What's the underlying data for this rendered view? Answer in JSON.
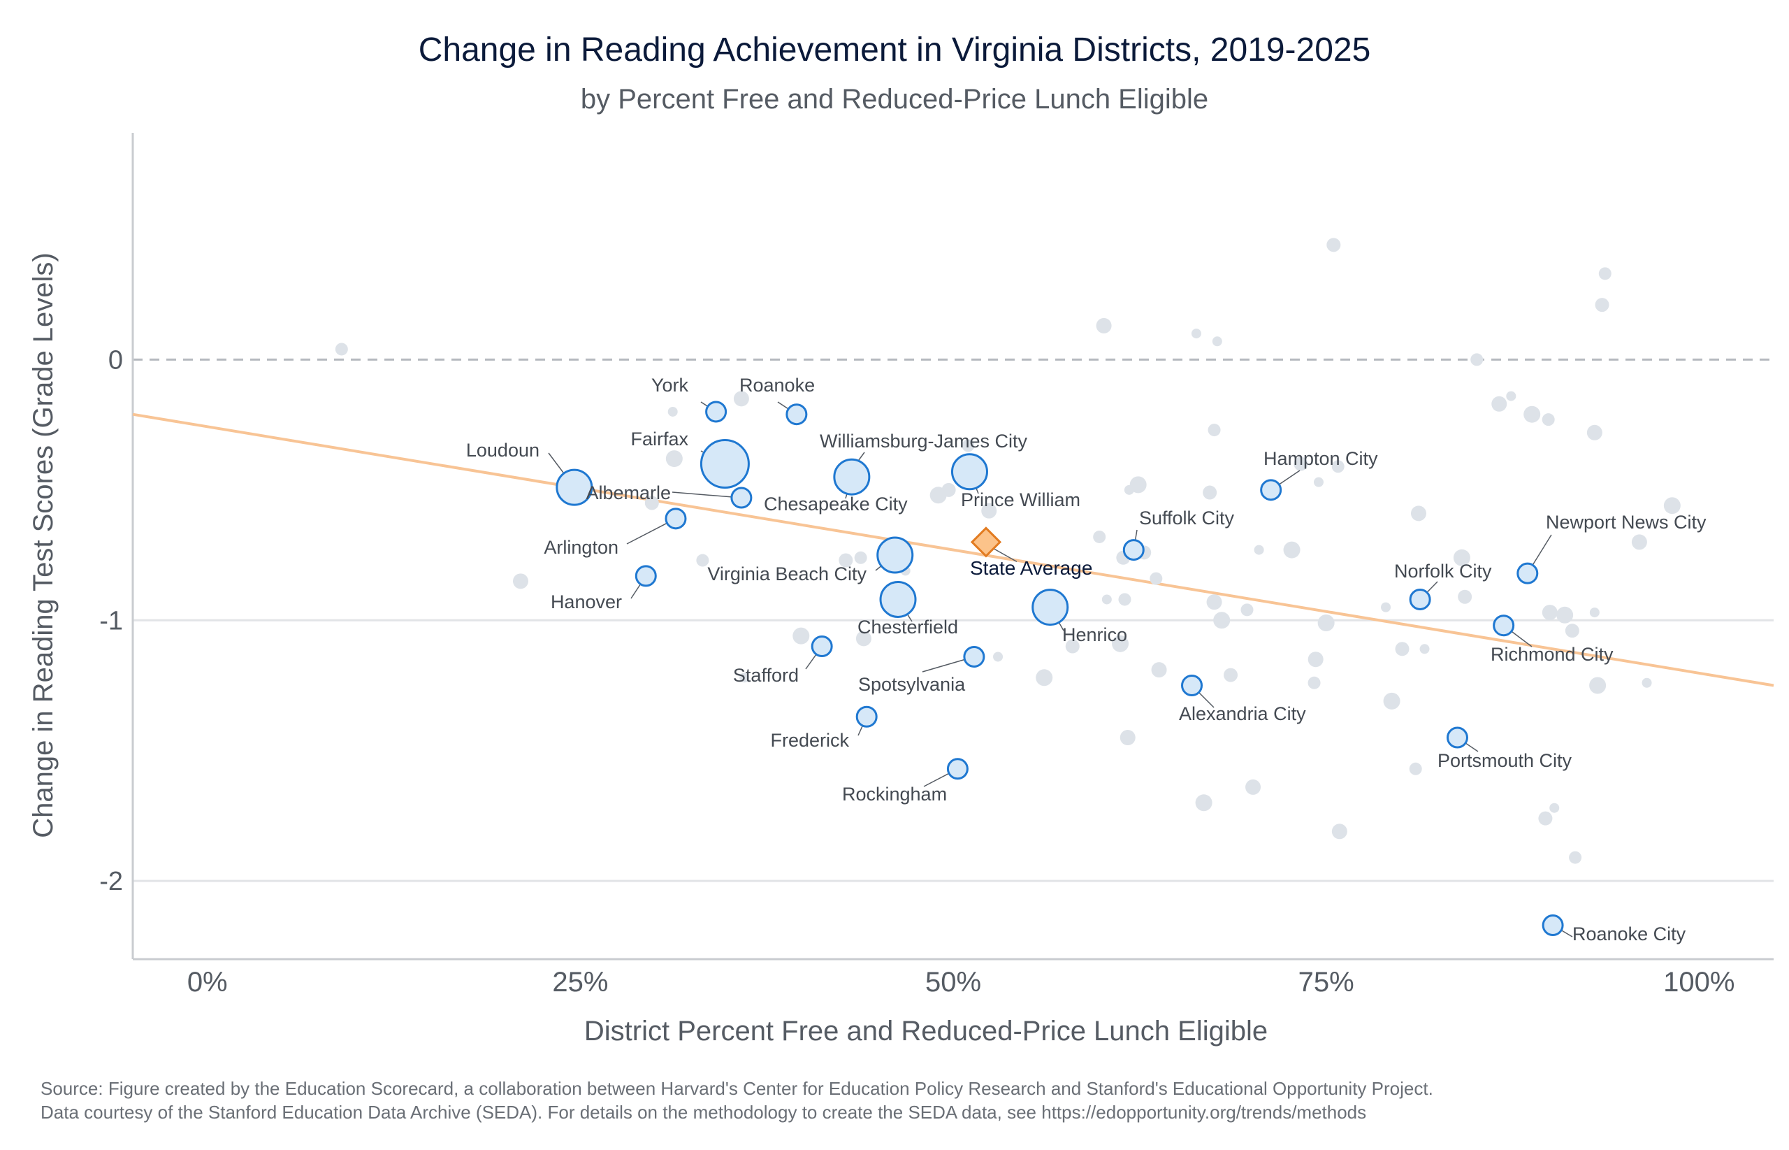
{
  "title": "Change in Reading Achievement in Virginia Districts, 2019-2025",
  "subtitle": "by Percent Free and Reduced-Price Lunch Eligible",
  "source_lines": [
    "Source: Figure created by the Education Scorecard, a collaboration between Harvard's Center for Education Policy Research and Stanford's Educational Opportunity Project.",
    "Data courtesy of the Stanford Education Data Archive (SEDA). For details on the methodology to create the SEDA data, see https://edopportunity.org/trends/methods"
  ],
  "colors": {
    "highlight_fill": "#d6e8f8",
    "highlight_stroke": "#1f78d1",
    "background_point": "#dde2e8",
    "state_fill": "#fcc38a",
    "state_stroke": "#e27b20",
    "trend_line": "#f8c495",
    "zero_line": "#b5b9bf",
    "grid": "#e2e4e7",
    "axis_text": "#555b63"
  },
  "chart_data": {
    "type": "scatter",
    "title": "Change in Reading Achievement in Virginia Districts, 2019-2025",
    "subtitle": "by Percent Free and Reduced-Price Lunch Eligible",
    "xlabel": "District Percent Free and Reduced-Price Lunch Eligible",
    "ylabel": "Change in Reading Test Scores (Grade Levels)",
    "xlim": [
      -0.05,
      1.05
    ],
    "ylim": [
      -2.3,
      0.87
    ],
    "x_ticks": [
      0,
      0.25,
      0.5,
      0.75,
      1.0
    ],
    "x_tick_labels": [
      "0%",
      "25%",
      "50%",
      "75%",
      "100%"
    ],
    "y_ticks": [
      0,
      -1,
      -2
    ],
    "y_tick_labels": [
      "0",
      "-1",
      "-2"
    ],
    "reference_line_y": 0,
    "trend_line": {
      "x": [
        -0.05,
        1.05
      ],
      "y": [
        -0.21,
        -1.25
      ]
    },
    "state_average": {
      "label": "State Average",
      "x": 0.522,
      "y": -0.7
    },
    "highlighted_districts": [
      {
        "name": "York",
        "x": 0.341,
        "y": -0.2,
        "size": "small"
      },
      {
        "name": "Roanoke",
        "x": 0.395,
        "y": -0.21,
        "size": "small"
      },
      {
        "name": "Fairfax",
        "x": 0.347,
        "y": -0.4,
        "size": "large"
      },
      {
        "name": "Loudoun",
        "x": 0.246,
        "y": -0.49,
        "size": "medium"
      },
      {
        "name": "Albemarle",
        "x": 0.358,
        "y": -0.53,
        "size": "small"
      },
      {
        "name": "Arlington",
        "x": 0.314,
        "y": -0.61,
        "size": "small"
      },
      {
        "name": "Hanover",
        "x": 0.294,
        "y": -0.83,
        "size": "small"
      },
      {
        "name": "Williamsburg-James City",
        "x": 0.431,
        "y": -0.43,
        "size": "small"
      },
      {
        "name": "Chesapeake City",
        "x": 0.432,
        "y": -0.45,
        "size": "medium"
      },
      {
        "name": "Prince William",
        "x": 0.511,
        "y": -0.43,
        "size": "medium"
      },
      {
        "name": "Virginia Beach City",
        "x": 0.461,
        "y": -0.75,
        "size": "medium"
      },
      {
        "name": "Chesterfield",
        "x": 0.463,
        "y": -0.92,
        "size": "medium"
      },
      {
        "name": "Stafford",
        "x": 0.412,
        "y": -1.1,
        "size": "small"
      },
      {
        "name": "Spotsylvania",
        "x": 0.514,
        "y": -1.14,
        "size": "small"
      },
      {
        "name": "Frederick",
        "x": 0.442,
        "y": -1.37,
        "size": "small"
      },
      {
        "name": "Rockingham",
        "x": 0.503,
        "y": -1.57,
        "size": "small"
      },
      {
        "name": "Henrico",
        "x": 0.565,
        "y": -0.95,
        "size": "medium"
      },
      {
        "name": "Suffolk City",
        "x": 0.621,
        "y": -0.73,
        "size": "small"
      },
      {
        "name": "Hampton City",
        "x": 0.713,
        "y": -0.5,
        "size": "small"
      },
      {
        "name": "Alexandria City",
        "x": 0.66,
        "y": -1.25,
        "size": "small"
      },
      {
        "name": "Newport News City",
        "x": 0.885,
        "y": -0.82,
        "size": "small"
      },
      {
        "name": "Norfolk City",
        "x": 0.813,
        "y": -0.92,
        "size": "small"
      },
      {
        "name": "Richmond City",
        "x": 0.869,
        "y": -1.02,
        "size": "small"
      },
      {
        "name": "Portsmouth City",
        "x": 0.838,
        "y": -1.45,
        "size": "small"
      },
      {
        "name": "Roanoke City",
        "x": 0.902,
        "y": -2.17,
        "size": "small"
      }
    ],
    "other_districts": [
      {
        "x": 0.09,
        "y": 0.04
      },
      {
        "x": 0.21,
        "y": -0.85
      },
      {
        "x": 0.312,
        "y": -0.2
      },
      {
        "x": 0.313,
        "y": -0.38
      },
      {
        "x": 0.298,
        "y": -0.55
      },
      {
        "x": 0.332,
        "y": -0.77
      },
      {
        "x": 0.358,
        "y": -0.15
      },
      {
        "x": 0.36,
        "y": -1.22
      },
      {
        "x": 0.398,
        "y": -1.06
      },
      {
        "x": 0.428,
        "y": -0.77
      },
      {
        "x": 0.438,
        "y": -0.76
      },
      {
        "x": 0.44,
        "y": -1.07
      },
      {
        "x": 0.468,
        "y": -0.81
      },
      {
        "x": 0.49,
        "y": -0.52
      },
      {
        "x": 0.497,
        "y": -0.5
      },
      {
        "x": 0.51,
        "y": -0.33
      },
      {
        "x": 0.524,
        "y": -0.58
      },
      {
        "x": 0.53,
        "y": -1.14
      },
      {
        "x": 0.561,
        "y": -1.22
      },
      {
        "x": 0.58,
        "y": -1.1
      },
      {
        "x": 0.598,
        "y": -0.68
      },
      {
        "x": 0.601,
        "y": 0.13
      },
      {
        "x": 0.603,
        "y": -0.92
      },
      {
        "x": 0.612,
        "y": -1.09
      },
      {
        "x": 0.614,
        "y": -0.76
      },
      {
        "x": 0.615,
        "y": -0.92
      },
      {
        "x": 0.617,
        "y": -1.45
      },
      {
        "x": 0.618,
        "y": -0.5
      },
      {
        "x": 0.624,
        "y": -0.48
      },
      {
        "x": 0.628,
        "y": -0.74
      },
      {
        "x": 0.636,
        "y": -0.84
      },
      {
        "x": 0.638,
        "y": -1.19
      },
      {
        "x": 0.663,
        "y": 0.1
      },
      {
        "x": 0.668,
        "y": -1.7
      },
      {
        "x": 0.672,
        "y": -0.51
      },
      {
        "x": 0.675,
        "y": -0.27
      },
      {
        "x": 0.675,
        "y": -0.93
      },
      {
        "x": 0.677,
        "y": 0.07
      },
      {
        "x": 0.68,
        "y": -1.0
      },
      {
        "x": 0.686,
        "y": -1.21
      },
      {
        "x": 0.697,
        "y": -0.96
      },
      {
        "x": 0.701,
        "y": -1.64
      },
      {
        "x": 0.705,
        "y": -0.73
      },
      {
        "x": 0.727,
        "y": -0.73
      },
      {
        "x": 0.733,
        "y": -0.4
      },
      {
        "x": 0.742,
        "y": -1.24
      },
      {
        "x": 0.743,
        "y": -1.15
      },
      {
        "x": 0.745,
        "y": -0.47
      },
      {
        "x": 0.75,
        "y": -1.01
      },
      {
        "x": 0.755,
        "y": 0.44
      },
      {
        "x": 0.758,
        "y": -0.41
      },
      {
        "x": 0.759,
        "y": -1.81
      },
      {
        "x": 0.79,
        "y": -0.95
      },
      {
        "x": 0.794,
        "y": -1.31
      },
      {
        "x": 0.801,
        "y": -1.11
      },
      {
        "x": 0.81,
        "y": -1.57
      },
      {
        "x": 0.812,
        "y": -0.59
      },
      {
        "x": 0.816,
        "y": -1.11
      },
      {
        "x": 0.841,
        "y": -0.76
      },
      {
        "x": 0.843,
        "y": -0.91
      },
      {
        "x": 0.851,
        "y": 0.0
      },
      {
        "x": 0.866,
        "y": -0.17
      },
      {
        "x": 0.874,
        "y": -0.14
      },
      {
        "x": 0.888,
        "y": -0.21
      },
      {
        "x": 0.897,
        "y": -1.76
      },
      {
        "x": 0.899,
        "y": -0.23
      },
      {
        "x": 0.9,
        "y": -0.97
      },
      {
        "x": 0.903,
        "y": -1.72
      },
      {
        "x": 0.91,
        "y": -0.98
      },
      {
        "x": 0.915,
        "y": -1.04
      },
      {
        "x": 0.917,
        "y": -1.91
      },
      {
        "x": 0.93,
        "y": -0.28
      },
      {
        "x": 0.93,
        "y": -0.97
      },
      {
        "x": 0.932,
        "y": -1.25
      },
      {
        "x": 0.935,
        "y": 0.21
      },
      {
        "x": 0.937,
        "y": 0.33
      },
      {
        "x": 0.96,
        "y": -0.7
      },
      {
        "x": 0.965,
        "y": -1.24
      },
      {
        "x": 0.982,
        "y": -0.56
      }
    ]
  }
}
